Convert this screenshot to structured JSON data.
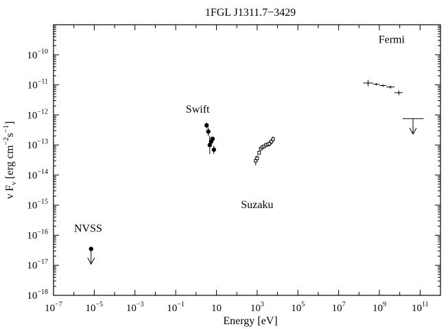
{
  "chart_data": {
    "type": "scatter",
    "title": "1FGL J1311.7−3429",
    "xlabel": "Energy [eV]",
    "ylabel": {
      "main": "ν F",
      "sub": "ν",
      "units_open": " [erg cm",
      "exp1": "−2",
      "mid": "s",
      "exp2": "−1",
      "close": "]"
    },
    "x_scale": "log",
    "y_scale": "log",
    "xlim": [
      1e-07,
      1000000000000.0
    ],
    "ylim": [
      1e-18,
      1e-09
    ],
    "x_ticks": [
      {
        "value": 1e-07,
        "base": "10",
        "exp": "−7"
      },
      {
        "value": 1e-05,
        "base": "10",
        "exp": "−5"
      },
      {
        "value": 0.001,
        "base": "10",
        "exp": "−3"
      },
      {
        "value": 0.1,
        "base": "10",
        "exp": "−1"
      },
      {
        "value": 10,
        "base": "10",
        "exp": ""
      },
      {
        "value": 1000.0,
        "base": "10",
        "exp": "3"
      },
      {
        "value": 100000.0,
        "base": "10",
        "exp": "5"
      },
      {
        "value": 10000000.0,
        "base": "10",
        "exp": "7"
      },
      {
        "value": 1000000000.0,
        "base": "10",
        "exp": "9"
      },
      {
        "value": 100000000000.0,
        "base": "10",
        "exp": "11"
      }
    ],
    "y_ticks": [
      {
        "value": 1e-18,
        "base": "10",
        "exp": "−18"
      },
      {
        "value": 1e-17,
        "base": "10",
        "exp": "−17"
      },
      {
        "value": 1e-16,
        "base": "10",
        "exp": "−16"
      },
      {
        "value": 1e-15,
        "base": "10",
        "exp": "−15"
      },
      {
        "value": 1e-14,
        "base": "10",
        "exp": "−14"
      },
      {
        "value": 1e-13,
        "base": "10",
        "exp": "−13"
      },
      {
        "value": 1e-12,
        "base": "10",
        "exp": "−12"
      },
      {
        "value": 1e-11,
        "base": "10",
        "exp": "−11"
      },
      {
        "value": 1e-10,
        "base": "10",
        "exp": "−10"
      }
    ],
    "grid": false,
    "annotations": [
      {
        "text": "Fermi",
        "x": 4000000000.0,
        "y": 2.5e-10
      },
      {
        "text": "Swift",
        "x": 1.2,
        "y": 1.2e-12
      },
      {
        "text": "Suzaku",
        "x": 1000,
        "y": 8e-16
      },
      {
        "text": "NVSS",
        "x": 5e-06,
        "y": 1.3e-16
      }
    ],
    "series": [
      {
        "name": "NVSS",
        "marker": "filled-circle",
        "points": [
          {
            "x": 7e-06,
            "y": 3.5e-17,
            "upper_limit": true,
            "arrow_to": 1.1e-17
          }
        ]
      },
      {
        "name": "Swift",
        "marker": "filled-circle",
        "points": [
          {
            "x": 3.3,
            "y": 4.5e-13,
            "yerr": [
              3.5e-13,
              5.6e-13
            ]
          },
          {
            "x": 4.0,
            "y": 2.8e-13,
            "yerr": [
              2e-13,
              3.8e-13
            ]
          },
          {
            "x": 4.7,
            "y": 1e-13,
            "yerr": [
              5e-14,
              2e-13
            ]
          },
          {
            "x": 5.5,
            "y": 1.3e-13,
            "yerr": [
              1e-13,
              1.7e-13
            ]
          },
          {
            "x": 6.5,
            "y": 1.6e-13,
            "yerr": [
              1.3e-13,
              1.9e-13
            ]
          },
          {
            "x": 7.5,
            "y": 7e-14,
            "yerr": [
              5e-14,
              9.5e-14
            ]
          }
        ]
      },
      {
        "name": "Suzaku",
        "marker": "open-square",
        "points": [
          {
            "x": 850,
            "y": 3e-14,
            "yerr": [
              2.1e-14,
              4.2e-14
            ]
          },
          {
            "x": 1000,
            "y": 3.6e-14,
            "yerr": [
              2.8e-14,
              4.6e-14
            ]
          },
          {
            "x": 1250,
            "y": 5.5e-14,
            "yerr": [
              5e-14,
              6e-14
            ]
          },
          {
            "x": 1500,
            "y": 7.5e-14,
            "yerr": [
              6.8e-14,
              8.3e-14
            ]
          },
          {
            "x": 1800,
            "y": 8.5e-14,
            "yerr": [
              7.7e-14,
              9.4e-14
            ]
          },
          {
            "x": 2200,
            "y": 9e-14,
            "yerr": [
              8.1e-14,
              1e-13
            ]
          },
          {
            "x": 2700,
            "y": 1e-13,
            "yerr": [
              9e-14,
              1.1e-13
            ]
          },
          {
            "x": 3300,
            "y": 1.05e-13,
            "yerr": [
              9.2e-14,
              1.2e-13
            ]
          },
          {
            "x": 4000,
            "y": 1.1e-13,
            "yerr": [
              9e-14,
              1.35e-13
            ]
          },
          {
            "x": 5000,
            "y": 1.3e-13,
            "yerr": [
              1.05e-13,
              1.6e-13
            ]
          },
          {
            "x": 6000,
            "y": 1.55e-13,
            "yerr": [
              1.25e-13,
              1.95e-13
            ]
          }
        ]
      },
      {
        "name": "Fermi",
        "marker": "cross",
        "points": [
          {
            "x": 280000000.0,
            "y": 1.15e-11,
            "xerr": [
              160000000.0,
              500000000.0
            ],
            "yerr": [
              9e-12,
              1.45e-11
            ]
          },
          {
            "x": 700000000.0,
            "y": 1.05e-11,
            "xerr": [
              500000000.0,
              1000000000.0
            ],
            "yerr": [
              9.5e-12,
              1.15e-11
            ]
          },
          {
            "x": 1500000000.0,
            "y": 9.5e-12,
            "xerr": [
              1000000000.0,
              2200000000.0
            ],
            "yerr": [
              8.5e-12,
              1.05e-11
            ]
          },
          {
            "x": 3500000000.0,
            "y": 8.5e-12,
            "xerr": [
              2200000000.0,
              5500000000.0
            ],
            "yerr": [
              7.5e-12,
              9.5e-12
            ]
          },
          {
            "x": 9000000000.0,
            "y": 5.5e-12,
            "xerr": [
              5500000000.0,
              14000000000.0
            ],
            "yerr": [
              4.5e-12,
              6.5e-12
            ]
          },
          {
            "x": 45000000000.0,
            "y": 7.5e-13,
            "xerr": [
              14000000000.0,
              150000000000.0
            ],
            "upper_limit": true,
            "arrow_to": 2.3e-13
          }
        ]
      }
    ]
  }
}
